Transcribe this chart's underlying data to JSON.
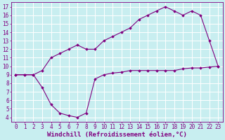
{
  "line1_x": [
    0,
    1,
    2,
    3,
    4,
    5,
    6,
    7,
    8,
    9,
    10,
    11,
    12,
    13,
    14,
    15,
    16,
    17,
    18,
    19,
    20,
    21,
    22,
    23
  ],
  "line1_y": [
    9.0,
    9.0,
    9.0,
    9.5,
    11.0,
    11.5,
    12.0,
    12.5,
    12.0,
    12.0,
    13.0,
    13.5,
    14.0,
    14.5,
    15.5,
    16.0,
    16.5,
    17.0,
    16.5,
    16.0,
    16.5,
    16.0,
    13.0,
    10.0
  ],
  "line2_x": [
    0,
    1,
    2,
    3,
    4,
    5,
    6,
    7,
    8,
    9,
    10,
    11,
    12,
    13,
    14,
    15,
    16,
    17,
    18,
    19,
    20,
    21,
    22,
    23
  ],
  "line2_y": [
    9.0,
    9.0,
    9.0,
    7.5,
    5.5,
    4.5,
    4.2,
    4.0,
    4.5,
    8.5,
    9.0,
    9.2,
    9.3,
    9.5,
    9.5,
    9.5,
    9.5,
    9.5,
    9.5,
    9.7,
    9.8,
    9.8,
    9.9,
    10.0
  ],
  "color": "#800080",
  "bg_color": "#c8eef0",
  "grid_color": "#aadddd",
  "xlabel": "Windchill (Refroidissement éolien,°C)",
  "ylim": [
    3.5,
    17.5
  ],
  "xlim": [
    -0.5,
    23.5
  ],
  "yticks": [
    4,
    5,
    6,
    7,
    8,
    9,
    10,
    11,
    12,
    13,
    14,
    15,
    16,
    17
  ],
  "xticks": [
    0,
    1,
    2,
    3,
    4,
    5,
    6,
    7,
    8,
    9,
    10,
    11,
    12,
    13,
    14,
    15,
    16,
    17,
    18,
    19,
    20,
    21,
    22,
    23
  ],
  "tick_fontsize": 5.5,
  "xlabel_fontsize": 6.5,
  "marker": "D",
  "markersize": 1.8,
  "linewidth": 0.8
}
